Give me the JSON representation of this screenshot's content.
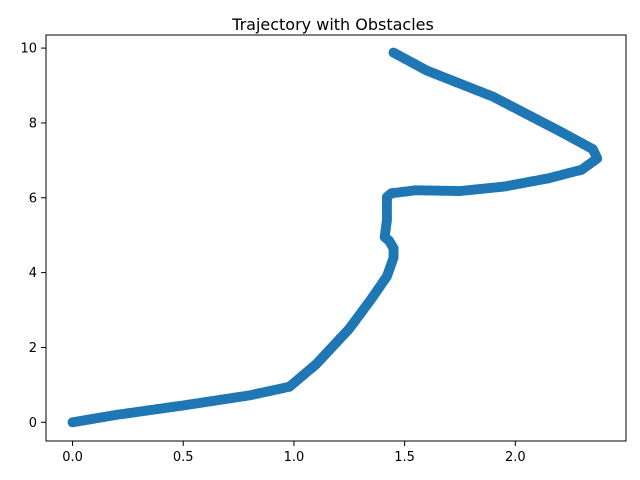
{
  "chart_data": {
    "type": "scatter",
    "title": "Trajectory with Obstacles",
    "xlabel": "",
    "ylabel": "",
    "xlim": [
      -0.12,
      2.5
    ],
    "ylim": [
      -0.5,
      10.35
    ],
    "xticks": [
      0.0,
      0.5,
      1.0,
      1.5,
      2.0
    ],
    "xtick_labels": [
      "0.0",
      "0.5",
      "1.0",
      "1.5",
      "2.0"
    ],
    "yticks": [
      0,
      2,
      4,
      6,
      8,
      10
    ],
    "ytick_labels": [
      "0",
      "2",
      "4",
      "6",
      "8",
      "10"
    ],
    "grid": false,
    "series": [
      {
        "color": "#1f77b4",
        "x": [
          0.0,
          0.2,
          0.5,
          0.8,
          0.98,
          1.1,
          1.25,
          1.35,
          1.42,
          1.45,
          1.45,
          1.43,
          1.41,
          1.42,
          1.42,
          1.44,
          1.55,
          1.75,
          1.95,
          2.15,
          2.3,
          2.37,
          2.35,
          2.2,
          1.9,
          1.6,
          1.45
        ],
        "y": [
          0.0,
          0.2,
          0.45,
          0.72,
          0.95,
          1.55,
          2.5,
          3.3,
          3.9,
          4.4,
          4.65,
          4.85,
          4.95,
          5.4,
          6.02,
          6.12,
          6.2,
          6.18,
          6.3,
          6.52,
          6.75,
          7.05,
          7.3,
          7.78,
          8.7,
          9.4,
          9.88
        ]
      }
    ]
  }
}
